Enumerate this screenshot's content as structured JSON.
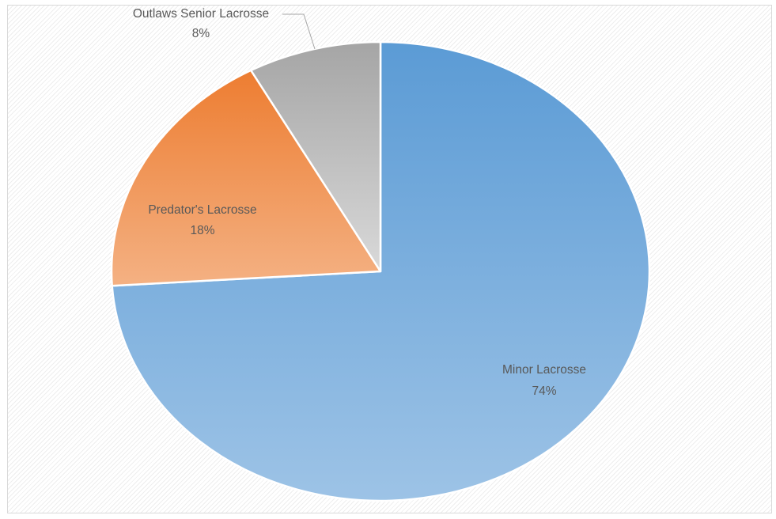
{
  "chart_data": {
    "type": "pie",
    "title": "",
    "legend": "none",
    "slices": [
      {
        "name": "Minor Lacrosse",
        "value": 74,
        "label": "74%",
        "color_top": "#5b9bd5",
        "color_bottom": "#9dc3e6"
      },
      {
        "name": "Predator's Lacrosse",
        "value": 18,
        "label": "18%",
        "color_top": "#ed7d31",
        "color_bottom": "#f4b183"
      },
      {
        "name": "Outlaws Senior Lacrosse",
        "value": 8,
        "label": "8%",
        "color_top": "#a5a5a5",
        "color_bottom": "#d9d9d9"
      }
    ]
  }
}
